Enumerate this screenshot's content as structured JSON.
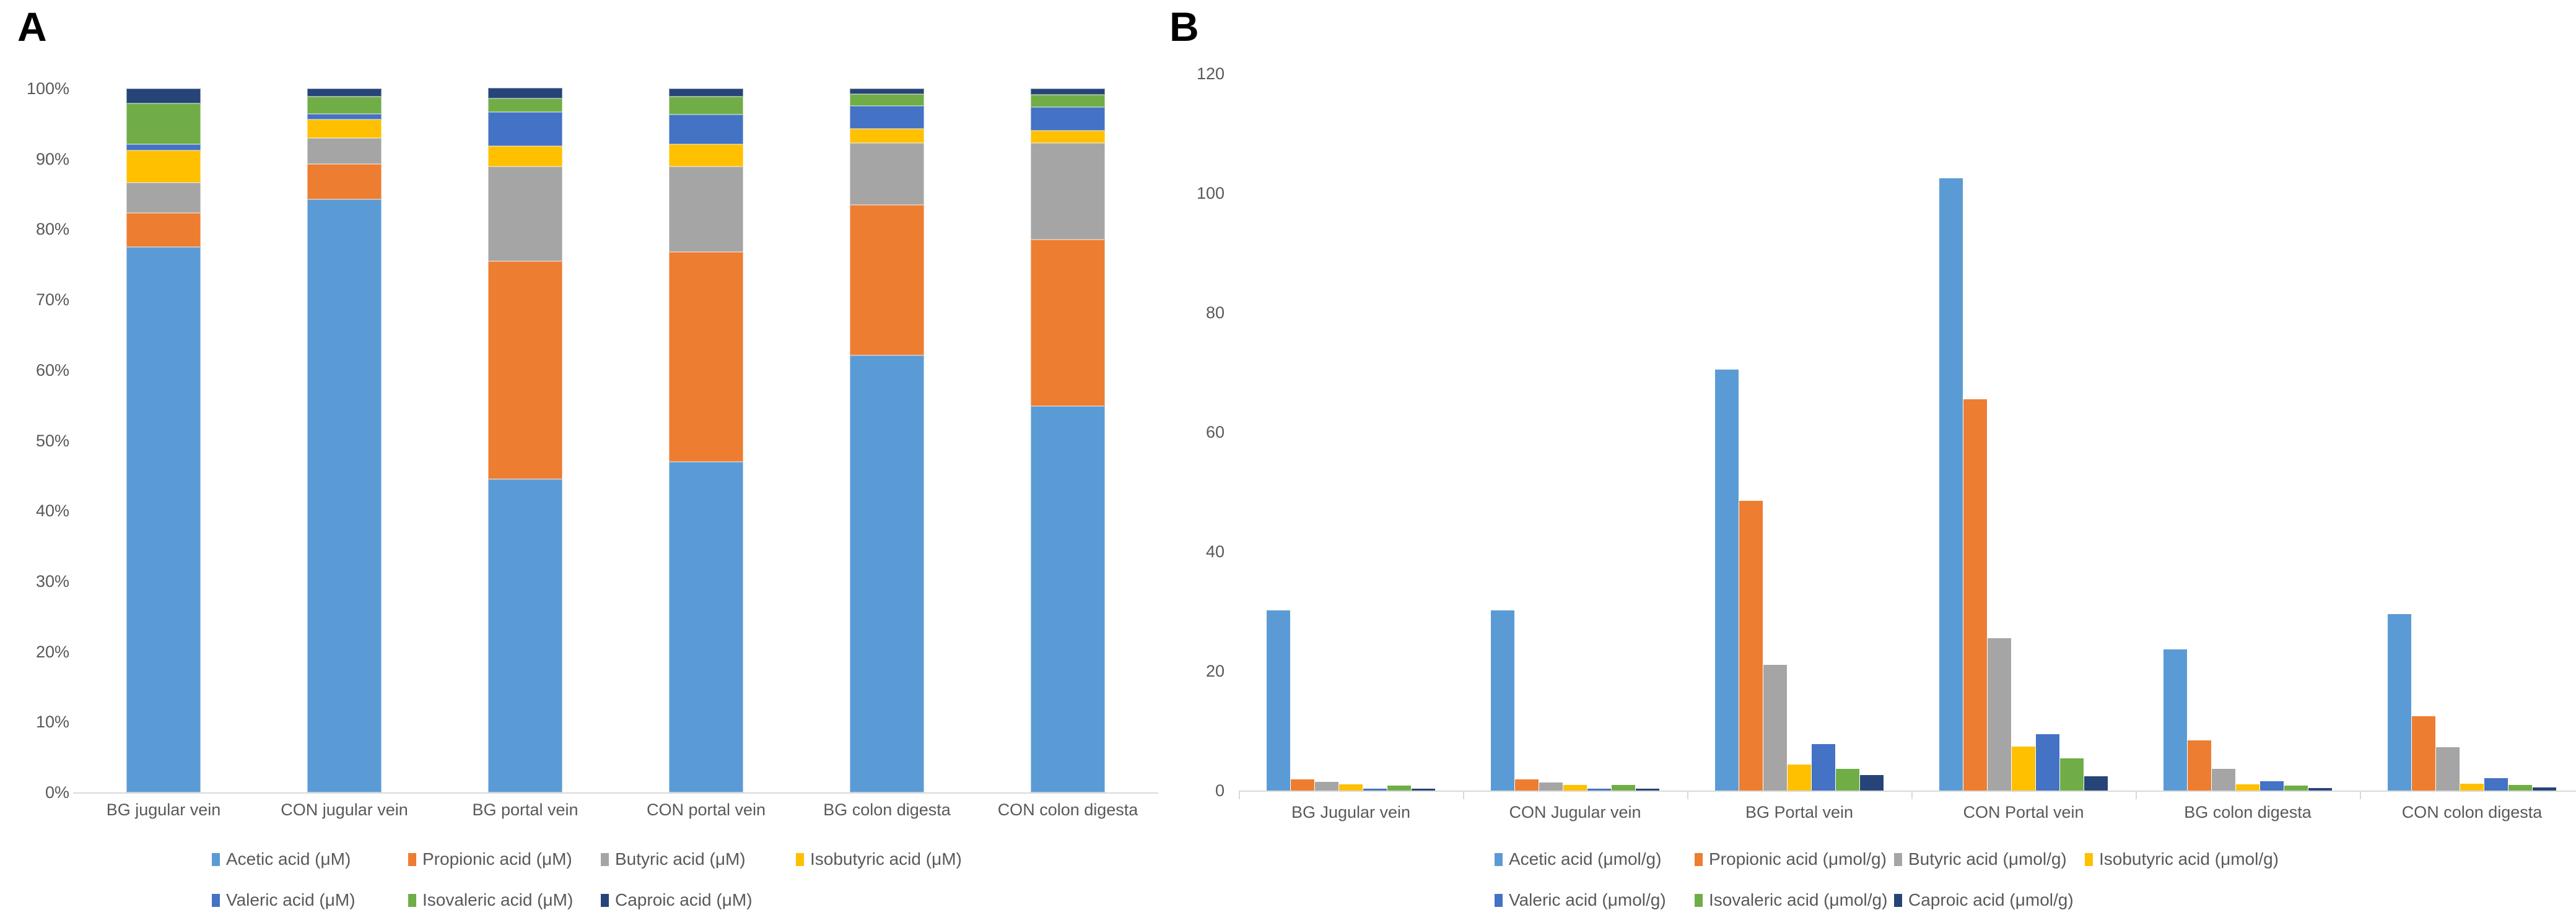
{
  "panel_a_label": "A",
  "panel_b_label": "B",
  "colors": {
    "acetic": "#5B9BD5",
    "propionic": "#ED7D31",
    "butyric": "#A5A5A5",
    "isobutyric": "#FFC000",
    "valeric": "#4472C4",
    "isovaleric": "#70AD47",
    "caproic": "#264478",
    "axis_text": "#595959",
    "axis_line": "#D9D9D9",
    "background": "#FFFFFF"
  },
  "chart_data": [
    {
      "id": "A",
      "type": "bar",
      "subtype": "stacked-100-percent-column",
      "title": "",
      "xlabel": "",
      "ylabel": "",
      "grid": false,
      "legend_position": "bottom",
      "ylim": [
        0,
        100
      ],
      "ytick_labels": [
        "0%",
        "10%",
        "20%",
        "30%",
        "40%",
        "50%",
        "60%",
        "70%",
        "80%",
        "90%",
        "100%"
      ],
      "categories": [
        "BG jugular vein",
        "CON jugular vein",
        "BG portal vein",
        "CON portal vein",
        "BG colon digesta",
        "CON colon digesta"
      ],
      "series": [
        {
          "name": "Acetic acid (μM)",
          "color": "#5B9BD5",
          "values": [
            77.5,
            84.3,
            44.5,
            47.0,
            62.1,
            54.9
          ]
        },
        {
          "name": "Propionic acid (μM)",
          "color": "#ED7D31",
          "values": [
            4.8,
            5.0,
            31.0,
            29.8,
            21.4,
            23.6
          ]
        },
        {
          "name": "Butyric acid (μM)",
          "color": "#A5A5A5",
          "values": [
            4.3,
            3.7,
            13.4,
            12.1,
            8.8,
            13.8
          ]
        },
        {
          "name": "Isobutyric acid (μM)",
          "color": "#FFC000",
          "values": [
            4.6,
            2.6,
            2.9,
            3.2,
            2.0,
            1.7
          ]
        },
        {
          "name": "Valeric acid (μM)",
          "color": "#4472C4",
          "values": [
            0.9,
            0.8,
            4.9,
            4.2,
            3.2,
            3.4
          ]
        },
        {
          "name": "Isovaleric acid (μM)",
          "color": "#70AD47",
          "values": [
            5.8,
            2.5,
            1.9,
            2.6,
            1.7,
            1.7
          ]
        },
        {
          "name": "Caproic acid (μM)",
          "color": "#264478",
          "values": [
            2.1,
            1.1,
            1.5,
            1.1,
            0.8,
            0.9
          ]
        }
      ]
    },
    {
      "id": "B",
      "type": "bar",
      "subtype": "grouped-column",
      "title": "",
      "xlabel": "",
      "ylabel": "",
      "grid": false,
      "legend_position": "bottom",
      "ylim": [
        0,
        120
      ],
      "ytick_labels": [
        "0",
        "20",
        "40",
        "60",
        "80",
        "100",
        "120"
      ],
      "categories": [
        "BG Jugular vein",
        "CON Jugular vein",
        "BG Portal vein",
        "CON Portal vein",
        "BG colon digesta",
        "CON colon digesta"
      ],
      "series": [
        {
          "name": "Acetic acid (μmol/g)",
          "color": "#5B9BD5",
          "values": [
            30.2,
            30.2,
            70.5,
            102.5,
            23.6,
            29.5
          ]
        },
        {
          "name": "Propionic acid (μmol/g)",
          "color": "#ED7D31",
          "values": [
            1.9,
            1.9,
            48.5,
            65.5,
            8.4,
            12.4
          ]
        },
        {
          "name": "Butyric acid (μmol/g)",
          "color": "#A5A5A5",
          "values": [
            1.4,
            1.3,
            21.0,
            25.5,
            3.6,
            7.3
          ]
        },
        {
          "name": "Isobutyric acid (μmol/g)",
          "color": "#FFC000",
          "values": [
            1.0,
            0.9,
            4.4,
            7.4,
            1.0,
            1.1
          ]
        },
        {
          "name": "Valeric acid (μmol/g)",
          "color": "#4472C4",
          "values": [
            0.3,
            0.3,
            7.8,
            9.4,
            1.6,
            2.1
          ]
        },
        {
          "name": "Isovaleric acid (μmol/g)",
          "color": "#70AD47",
          "values": [
            0.8,
            0.9,
            3.6,
            5.4,
            0.8,
            0.9
          ]
        },
        {
          "name": "Caproic acid (μmol/g)",
          "color": "#264478",
          "values": [
            0.3,
            0.3,
            2.6,
            2.4,
            0.4,
            0.5
          ]
        }
      ]
    }
  ]
}
